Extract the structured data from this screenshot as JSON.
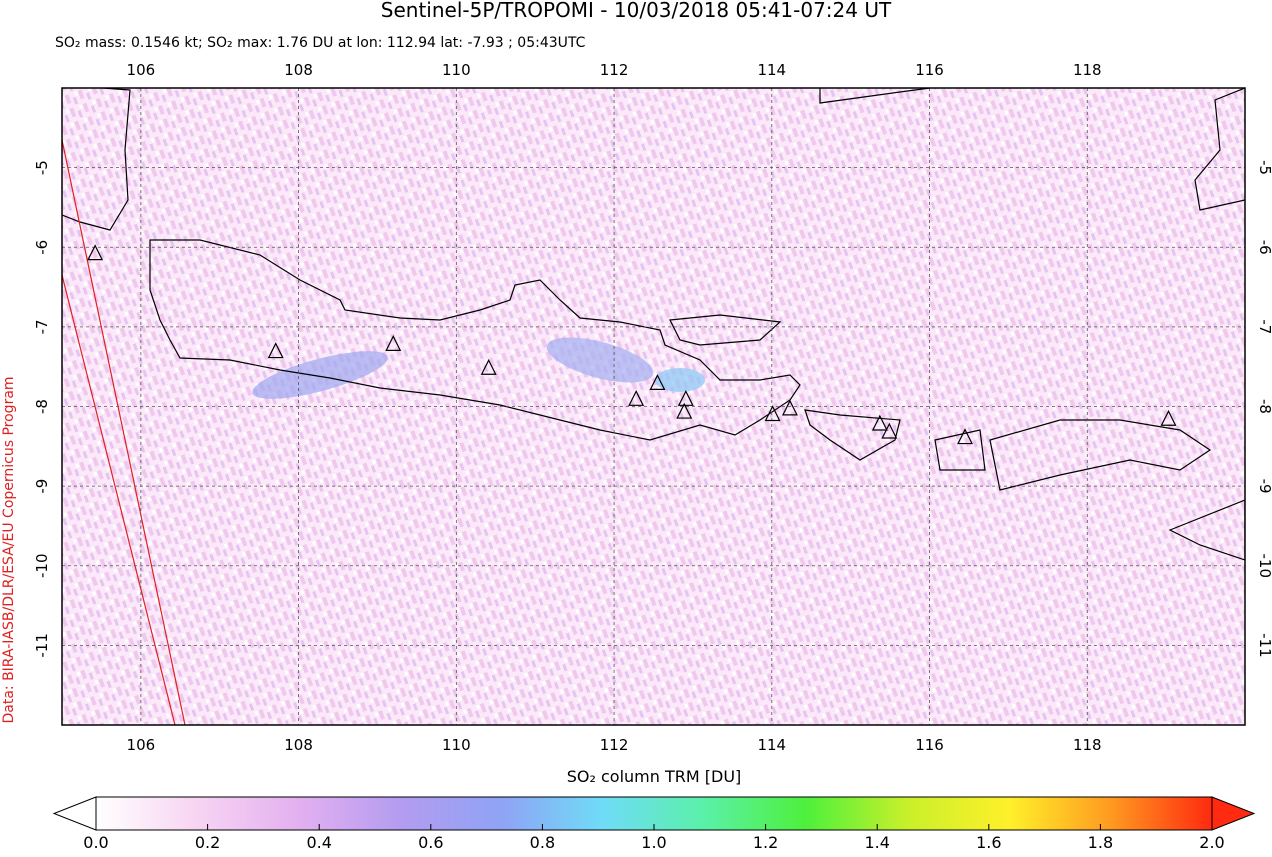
{
  "chart_data": {
    "type": "map",
    "title": "Sentinel-5P/TROPOMI - 10/03/2018 05:41-07:24 UT",
    "subtitle": "SO₂ mass: 0.1546 kt; SO₂ max: 1.76 DU at lon: 112.94 lat: -7.93 ; 05:43UTC",
    "credit": "Data: BIRA-IASB/DLR/ESA/EU Copernicus Program",
    "xlim": [
      105,
      120
    ],
    "ylim": [
      -12,
      -4
    ],
    "xticks": [
      106,
      108,
      110,
      112,
      114,
      116,
      118
    ],
    "yticks": [
      -5,
      -6,
      -7,
      -8,
      -9,
      -10,
      -11
    ],
    "grid": true,
    "series": [
      {
        "type": "scatter",
        "marker": "triangle",
        "color": "#000000",
        "x": [
          105.42,
          107.71,
          109.2,
          110.41,
          112.28,
          112.55,
          112.89,
          112.91,
          114.01,
          114.23,
          115.37,
          115.49,
          116.45,
          119.03
        ],
        "y": [
          -6.08,
          -7.31,
          -7.22,
          -7.52,
          -7.91,
          -7.71,
          -8.07,
          -7.91,
          -8.1,
          -8.03,
          -8.22,
          -8.32,
          -8.39,
          -8.16
        ]
      }
    ],
    "colorbar": {
      "label": "SO₂ column TRM [DU]",
      "range": [
        0,
        2
      ],
      "ticks": [
        {
          "value": 0,
          "label": "0.0"
        },
        {
          "value": 0.2,
          "label": "0.2"
        },
        {
          "value": 0.4,
          "label": "0.4"
        },
        {
          "value": 0.6,
          "label": "0.6"
        },
        {
          "value": 0.8,
          "label": "0.8"
        },
        {
          "value": 1,
          "label": "1.0"
        },
        {
          "value": 1.2,
          "label": "1.2"
        },
        {
          "value": 1.4,
          "label": "1.4"
        },
        {
          "value": 1.6,
          "label": "1.6"
        },
        {
          "value": 1.8,
          "label": "1.8"
        },
        {
          "value": 2,
          "label": "2.0"
        }
      ],
      "colors": [
        "#ffffff",
        "#f7d4f2",
        "#e3b0f0",
        "#b49cf0",
        "#8fa3f5",
        "#6fdcf7",
        "#5af0a8",
        "#4ef03c",
        "#c8f02a",
        "#fff02a",
        "#ff9a20",
        "#ff2a10"
      ]
    }
  }
}
